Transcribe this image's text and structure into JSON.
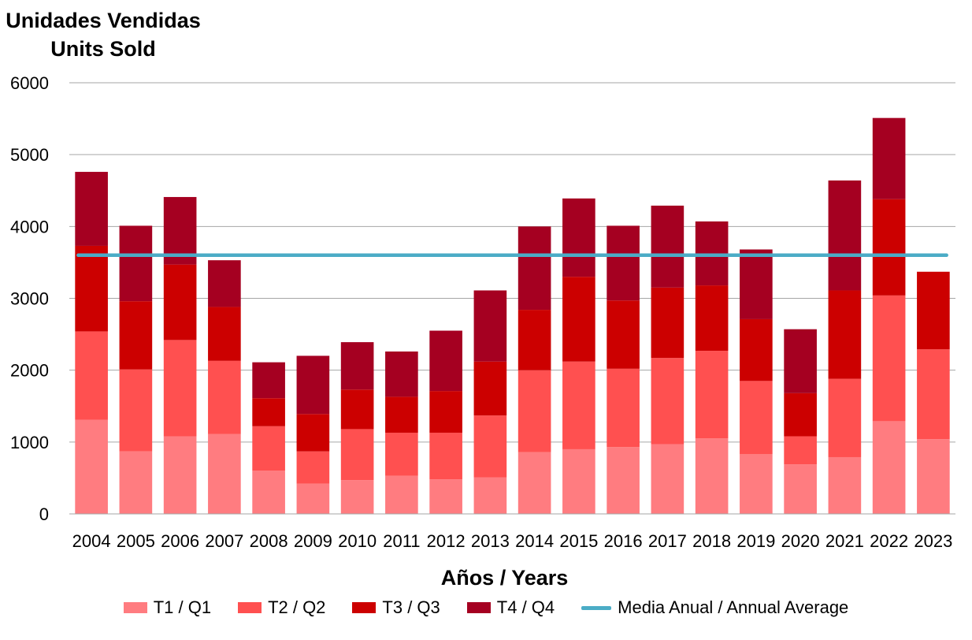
{
  "chart_data": {
    "type": "bar",
    "stacked": true,
    "title": [
      "Unidades Vendidas",
      "Units Sold"
    ],
    "xlabel": "Años / Years",
    "ylabel": "",
    "ylim": [
      0,
      6000
    ],
    "yticks": [
      0,
      1000,
      2000,
      3000,
      4000,
      5000,
      6000
    ],
    "grid": true,
    "legend_position": "bottom",
    "categories": [
      "2004",
      "2005",
      "2006",
      "2007",
      "2008",
      "2009",
      "2010",
      "2011",
      "2012",
      "2013",
      "2014",
      "2015",
      "2016",
      "2017",
      "2018",
      "2019",
      "2020",
      "2021",
      "2022",
      "2023"
    ],
    "series": [
      {
        "name": "T1 / Q1",
        "color": "#ff7c80",
        "values": [
          1310,
          870,
          1080,
          1110,
          600,
          420,
          470,
          530,
          480,
          510,
          860,
          900,
          930,
          970,
          1050,
          830,
          690,
          790,
          1290,
          1040
        ]
      },
      {
        "name": "T2 / Q2",
        "color": "#ff5050",
        "values": [
          1230,
          1140,
          1340,
          1020,
          620,
          450,
          710,
          600,
          650,
          860,
          1140,
          1220,
          1090,
          1200,
          1220,
          1020,
          390,
          1090,
          1750,
          1250
        ]
      },
      {
        "name": "T3 / Q3",
        "color": "#cc0000",
        "values": [
          1190,
          950,
          1050,
          750,
          390,
          520,
          550,
          500,
          580,
          750,
          840,
          1180,
          950,
          980,
          910,
          860,
          600,
          1230,
          1340,
          1080
        ]
      },
      {
        "name": "T4 / Q4",
        "color": "#a50021",
        "values": [
          1030,
          1050,
          940,
          650,
          500,
          810,
          660,
          630,
          840,
          990,
          1160,
          1090,
          1040,
          1140,
          890,
          970,
          890,
          1530,
          1130,
          0
        ]
      }
    ],
    "average": {
      "name": "Media Anual / Annual Average",
      "color": "#4bacc6",
      "value": 3600
    }
  }
}
